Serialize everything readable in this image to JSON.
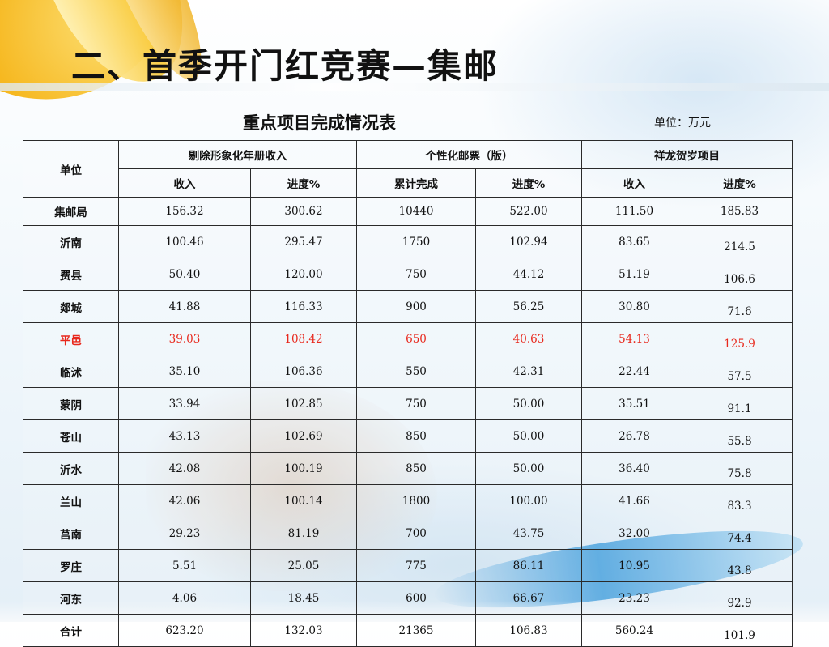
{
  "slide": {
    "title": "二、首季开门红竞赛—集邮"
  },
  "table": {
    "title": "重点项目完成情况表",
    "unit": "单位：万元",
    "header": {
      "unit_col": "单位",
      "groups": [
        "剔除形象化年册收入",
        "个性化邮票（版）",
        "祥龙贺岁项目"
      ],
      "subheaders": [
        "收入",
        "进度%",
        "累计完成",
        "进度%",
        "收入",
        "进度%"
      ]
    },
    "highlight_color": "#e8281c",
    "rows": [
      {
        "name": "集邮局",
        "values": [
          "156.32",
          "300.62",
          "10440",
          "522.00",
          "111.50",
          "185.83"
        ]
      },
      {
        "name": "沂南",
        "values": [
          "100.46",
          "295.47",
          "1750",
          "102.94",
          "83.65",
          "214.5"
        ]
      },
      {
        "name": "费县",
        "values": [
          "50.40",
          "120.00",
          "750",
          "44.12",
          "51.19",
          "106.6"
        ]
      },
      {
        "name": "郯城",
        "values": [
          "41.88",
          "116.33",
          "900",
          "56.25",
          "30.80",
          "71.6"
        ]
      },
      {
        "name": "平邑",
        "values": [
          "39.03",
          "108.42",
          "650",
          "40.63",
          "54.13",
          "125.9"
        ],
        "highlight": true
      },
      {
        "name": "临沭",
        "values": [
          "35.10",
          "106.36",
          "550",
          "42.31",
          "22.44",
          "57.5"
        ]
      },
      {
        "name": "蒙阴",
        "values": [
          "33.94",
          "102.85",
          "750",
          "50.00",
          "35.51",
          "91.1"
        ]
      },
      {
        "name": "苍山",
        "values": [
          "43.13",
          "102.69",
          "850",
          "50.00",
          "26.78",
          "55.8"
        ]
      },
      {
        "name": "沂水",
        "values": [
          "42.08",
          "100.19",
          "850",
          "50.00",
          "36.40",
          "75.8"
        ]
      },
      {
        "name": "兰山",
        "values": [
          "42.06",
          "100.14",
          "1800",
          "100.00",
          "41.66",
          "83.3"
        ]
      },
      {
        "name": "莒南",
        "values": [
          "29.23",
          "81.19",
          "700",
          "43.75",
          "32.00",
          "74.4"
        ]
      },
      {
        "name": "罗庄",
        "values": [
          "5.51",
          "25.05",
          "775",
          "86.11",
          "10.95",
          "43.8"
        ]
      },
      {
        "name": "河东",
        "values": [
          "4.06",
          "18.45",
          "600",
          "66.67",
          "23.23",
          "92.9"
        ]
      },
      {
        "name": "合计",
        "values": [
          "623.20",
          "132.03",
          "21365",
          "106.83",
          "560.24",
          "101.9"
        ]
      }
    ]
  }
}
